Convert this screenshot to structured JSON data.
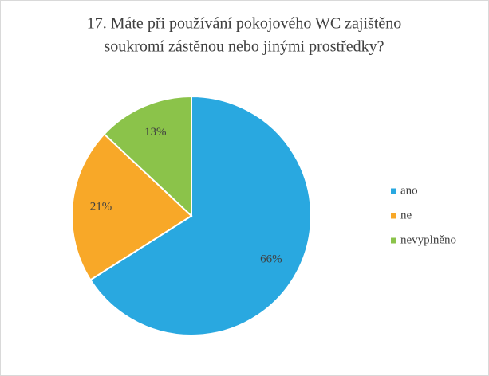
{
  "chart_data": {
    "type": "pie",
    "title": [
      "17. Máte  při používání pokojového WC zajištěno",
      "soukromí zástěnou nebo jinými prostředky?"
    ],
    "categories": [
      "ano",
      "ne",
      "nevyplněno"
    ],
    "values": [
      66,
      21,
      13
    ],
    "value_labels": [
      "66%",
      "21%",
      "13%"
    ],
    "colors": [
      "#29a8e0",
      "#f8a828",
      "#8bc34a"
    ],
    "legend": "right"
  }
}
